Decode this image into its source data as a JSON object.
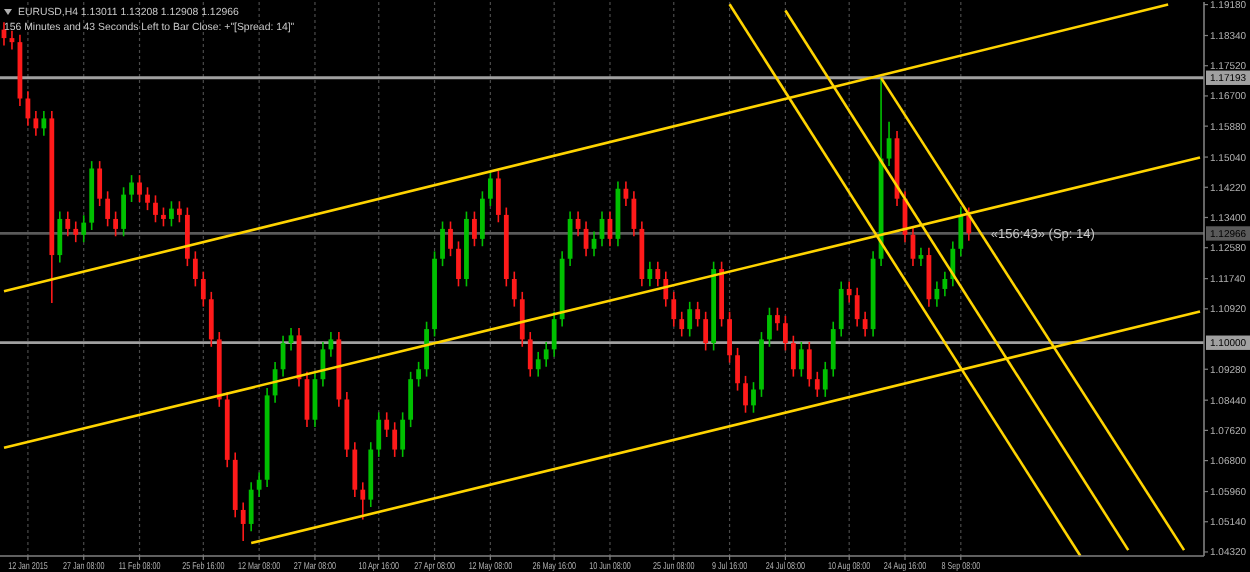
{
  "chart_data": {
    "type": "candlestick",
    "title": "EURUSD,H4  1.13011 1.13208 1.12908 1.12966",
    "subtitle": "156 Minutes and 43 Seconds Left to Bar Close: +\"[Spread: 14]\"",
    "categories": [
      null,
      null,
      null,
      "12 Jan 2015",
      null,
      null,
      null,
      null,
      null,
      null,
      "27 Jan 08:00",
      null,
      null,
      null,
      null,
      null,
      null,
      "11 Feb 08:00",
      null,
      null,
      null,
      null,
      null,
      null,
      null,
      "25 Feb 16:00",
      null,
      null,
      null,
      null,
      null,
      null,
      "12 Mar 08:00",
      null,
      null,
      null,
      null,
      null,
      null,
      "27 Mar 08:00",
      null,
      null,
      null,
      null,
      null,
      null,
      null,
      "10 Apr 16:00",
      null,
      null,
      null,
      null,
      null,
      null,
      "27 Apr 08:00",
      null,
      null,
      null,
      null,
      null,
      null,
      "12 May 08:00",
      null,
      null,
      null,
      null,
      null,
      null,
      null,
      "26 May 16:00",
      null,
      null,
      null,
      null,
      null,
      null,
      "10 Jun 08:00",
      null,
      null,
      null,
      null,
      null,
      null,
      null,
      "25 Jun 08:00",
      null,
      null,
      null,
      null,
      null,
      null,
      "9 Jul 16:00",
      null,
      null,
      null,
      null,
      null,
      null,
      "24 Jul 08:00",
      null,
      null,
      null,
      null,
      null,
      null,
      null,
      "10 Aug 08:00",
      null,
      null,
      null,
      null,
      null,
      null,
      "24 Aug 16:00",
      null,
      null,
      null,
      null,
      null,
      null,
      "8 Sep 08:00",
      null,
      null,
      null,
      null,
      null,
      null,
      null,
      null,
      null,
      null,
      null,
      null,
      null,
      null,
      null,
      null,
      null,
      null,
      null,
      null,
      null,
      null,
      null,
      null,
      null,
      null,
      null,
      null,
      null,
      null
    ],
    "ohlc": [
      [
        1.185,
        1.187,
        1.1807,
        1.1827
      ],
      [
        1.1827,
        1.1847,
        1.1796,
        1.1816
      ],
      [
        1.1816,
        1.1836,
        1.1643,
        1.1663
      ],
      [
        1.1663,
        1.1683,
        1.1589,
        1.1609
      ],
      [
        1.1609,
        1.1629,
        1.1562,
        1.1582
      ],
      [
        1.1582,
        1.1629,
        1.1562,
        1.1609
      ],
      [
        1.1609,
        1.1629,
        1.1108,
        1.1238
      ],
      [
        1.1238,
        1.1356,
        1.1218,
        1.1336
      ],
      [
        1.1336,
        1.1356,
        1.1289,
        1.1309
      ],
      [
        1.1309,
        1.1329,
        1.1273,
        1.1293
      ],
      [
        1.1293,
        1.1346,
        1.1273,
        1.1326
      ],
      [
        1.1326,
        1.1493,
        1.1306,
        1.1473
      ],
      [
        1.1473,
        1.1493,
        1.1371,
        1.1391
      ],
      [
        1.1391,
        1.1411,
        1.1316,
        1.1336
      ],
      [
        1.1336,
        1.1356,
        1.1289,
        1.1309
      ],
      [
        1.1309,
        1.1422,
        1.1289,
        1.1402
      ],
      [
        1.1402,
        1.1455,
        1.1382,
        1.1435
      ],
      [
        1.1435,
        1.1455,
        1.1382,
        1.1402
      ],
      [
        1.1402,
        1.1422,
        1.136,
        1.138
      ],
      [
        1.138,
        1.14,
        1.1327,
        1.1347
      ],
      [
        1.1347,
        1.1367,
        1.1316,
        1.1336
      ],
      [
        1.1336,
        1.1384,
        1.1316,
        1.1364
      ],
      [
        1.1364,
        1.1384,
        1.1327,
        1.1347
      ],
      [
        1.1347,
        1.1367,
        1.1208,
        1.1228
      ],
      [
        1.1228,
        1.1248,
        1.1153,
        1.1173
      ],
      [
        1.1173,
        1.1193,
        1.1098,
        1.1118
      ],
      [
        1.1118,
        1.1138,
        1.0989,
        1.1009
      ],
      [
        1.1009,
        1.1029,
        1.0826,
        1.0846
      ],
      [
        1.0846,
        1.0866,
        1.0662,
        1.0682
      ],
      [
        1.0682,
        1.0702,
        1.0526,
        1.0546
      ],
      [
        1.0546,
        1.0566,
        1.0462,
        1.0508
      ],
      [
        1.0508,
        1.0621,
        1.0488,
        1.0601
      ],
      [
        1.0601,
        1.0648,
        1.0581,
        1.0628
      ],
      [
        1.0628,
        1.0877,
        1.0608,
        1.0857
      ],
      [
        1.0857,
        1.0948,
        1.0837,
        1.0928
      ],
      [
        1.0928,
        1.1019,
        1.0908,
        1.0999
      ],
      [
        1.0999,
        1.104,
        1.0979,
        1.102
      ],
      [
        1.102,
        1.104,
        1.0881,
        1.0901
      ],
      [
        1.0901,
        1.0921,
        1.0771,
        1.0791
      ],
      [
        1.0791,
        1.0921,
        1.0771,
        1.0901
      ],
      [
        1.0901,
        1.1002,
        1.0881,
        1.0982
      ],
      [
        1.0982,
        1.1029,
        1.0962,
        1.1009
      ],
      [
        1.1009,
        1.1029,
        1.0826,
        1.0846
      ],
      [
        1.0846,
        1.0866,
        1.069,
        1.071
      ],
      [
        1.071,
        1.073,
        1.0581,
        1.0601
      ],
      [
        1.0601,
        1.0621,
        1.052,
        1.0574
      ],
      [
        1.0574,
        1.073,
        1.0554,
        1.071
      ],
      [
        1.071,
        1.0811,
        1.069,
        1.0791
      ],
      [
        1.0791,
        1.0811,
        1.0744,
        1.0764
      ],
      [
        1.0764,
        1.0784,
        1.069,
        1.071
      ],
      [
        1.071,
        1.0811,
        1.069,
        1.0791
      ],
      [
        1.0791,
        1.0921,
        1.0771,
        1.0901
      ],
      [
        1.0901,
        1.0948,
        1.0881,
        1.0928
      ],
      [
        1.0928,
        1.1057,
        1.0908,
        1.1037
      ],
      [
        1.1037,
        1.1248,
        1.1017,
        1.1228
      ],
      [
        1.1228,
        1.1329,
        1.1208,
        1.1309
      ],
      [
        1.1309,
        1.1329,
        1.1235,
        1.1255
      ],
      [
        1.1255,
        1.1275,
        1.1153,
        1.1173
      ],
      [
        1.1173,
        1.1356,
        1.1153,
        1.1336
      ],
      [
        1.1336,
        1.1356,
        1.1262,
        1.1282
      ],
      [
        1.1282,
        1.1411,
        1.1262,
        1.1391
      ],
      [
        1.1391,
        1.1466,
        1.1371,
        1.1446
      ],
      [
        1.1446,
        1.1466,
        1.1327,
        1.1347
      ],
      [
        1.1347,
        1.1367,
        1.1153,
        1.1173
      ],
      [
        1.1173,
        1.1193,
        1.1098,
        1.1118
      ],
      [
        1.1118,
        1.1138,
        1.0989,
        1.1009
      ],
      [
        1.1009,
        1.1029,
        1.0908,
        1.0928
      ],
      [
        1.0928,
        1.0975,
        1.0908,
        1.0955
      ],
      [
        1.0955,
        1.1002,
        1.0935,
        1.0982
      ],
      [
        1.0982,
        1.1084,
        1.0962,
        1.1064
      ],
      [
        1.1064,
        1.1248,
        1.1044,
        1.1228
      ],
      [
        1.1228,
        1.1356,
        1.1208,
        1.1336
      ],
      [
        1.1336,
        1.1356,
        1.1289,
        1.1309
      ],
      [
        1.1309,
        1.1329,
        1.1235,
        1.1255
      ],
      [
        1.1255,
        1.1302,
        1.1235,
        1.1282
      ],
      [
        1.1282,
        1.1356,
        1.1262,
        1.1336
      ],
      [
        1.1336,
        1.1356,
        1.1262,
        1.1282
      ],
      [
        1.1282,
        1.1438,
        1.1262,
        1.1418
      ],
      [
        1.1418,
        1.1438,
        1.1371,
        1.1391
      ],
      [
        1.1391,
        1.1411,
        1.1289,
        1.1309
      ],
      [
        1.1309,
        1.1329,
        1.1153,
        1.1173
      ],
      [
        1.1173,
        1.122,
        1.1153,
        1.12
      ],
      [
        1.12,
        1.122,
        1.1153,
        1.1173
      ],
      [
        1.1173,
        1.1193,
        1.1098,
        1.1118
      ],
      [
        1.1118,
        1.1138,
        1.1044,
        1.1064
      ],
      [
        1.1064,
        1.1084,
        1.1017,
        1.1037
      ],
      [
        1.1037,
        1.1111,
        1.1017,
        1.1091
      ],
      [
        1.1091,
        1.1111,
        1.1044,
        1.1064
      ],
      [
        1.1064,
        1.1084,
        1.0979,
        1.0999
      ],
      [
        1.0999,
        1.122,
        1.0979,
        1.12
      ],
      [
        1.12,
        1.122,
        1.1044,
        1.1064
      ],
      [
        1.1064,
        1.1084,
        1.0946,
        1.0966
      ],
      [
        1.0966,
        1.0986,
        1.087,
        1.089
      ],
      [
        1.089,
        1.091,
        1.081,
        1.083
      ],
      [
        1.083,
        1.0893,
        1.081,
        1.0873
      ],
      [
        1.0873,
        1.1029,
        1.0853,
        1.1009
      ],
      [
        1.1009,
        1.1095,
        1.0989,
        1.1075
      ],
      [
        1.1075,
        1.1095,
        1.1033,
        1.1053
      ],
      [
        1.1053,
        1.1073,
        1.0979,
        1.0999
      ],
      [
        1.0999,
        1.1019,
        1.0908,
        1.0928
      ],
      [
        1.0928,
        1.1002,
        1.0908,
        1.0982
      ],
      [
        1.0982,
        1.1002,
        1.0881,
        1.0901
      ],
      [
        1.0901,
        1.0921,
        1.0853,
        1.0873
      ],
      [
        1.0873,
        1.0948,
        1.0853,
        1.0928
      ],
      [
        1.0928,
        1.1057,
        1.0908,
        1.1037
      ],
      [
        1.1037,
        1.1166,
        1.1017,
        1.1146
      ],
      [
        1.1146,
        1.1166,
        1.1109,
        1.1129
      ],
      [
        1.1129,
        1.1149,
        1.1044,
        1.1064
      ],
      [
        1.1064,
        1.1084,
        1.1017,
        1.1037
      ],
      [
        1.1037,
        1.1248,
        1.1017,
        1.1228
      ],
      [
        1.1228,
        1.1719,
        1.1208,
        1.15
      ],
      [
        1.15,
        1.16,
        1.148,
        1.1555
      ],
      [
        1.1555,
        1.1575,
        1.1371,
        1.1391
      ],
      [
        1.1391,
        1.1411,
        1.1273,
        1.1293
      ],
      [
        1.1293,
        1.1313,
        1.1208,
        1.1228
      ],
      [
        1.1228,
        1.1258,
        1.1208,
        1.1238
      ],
      [
        1.1238,
        1.1258,
        1.1098,
        1.1118
      ],
      [
        1.1118,
        1.1166,
        1.1098,
        1.1146
      ],
      [
        1.1146,
        1.1193,
        1.1126,
        1.1173
      ],
      [
        1.1173,
        1.1275,
        1.1153,
        1.1255
      ],
      [
        1.1255,
        1.1367,
        1.1235,
        1.1347
      ],
      [
        1.1347,
        1.1367,
        1.1277,
        1.1297
      ],
      null,
      null,
      null,
      null,
      null,
      null,
      null,
      null,
      null,
      null,
      null,
      null,
      null,
      null,
      null,
      null,
      null,
      null,
      null,
      null,
      null,
      null,
      null,
      null,
      null,
      null,
      null,
      null,
      null
    ],
    "series": [
      {
        "type": "line",
        "color": "#ffd400",
        "values": [
          1.114,
          null,
          null,
          null,
          null,
          null,
          null,
          null,
          null,
          null,
          null,
          null,
          null,
          null,
          null,
          null,
          null,
          null,
          null,
          null,
          null,
          null,
          null,
          null,
          null,
          null,
          null,
          null,
          null,
          null,
          null,
          null,
          null,
          null,
          null,
          null,
          null,
          null,
          null,
          null,
          null,
          null,
          null,
          null,
          null,
          null,
          null,
          null,
          null,
          null,
          null,
          null,
          null,
          null,
          null,
          null,
          null,
          null,
          null,
          null,
          null,
          null,
          null,
          null,
          null,
          null,
          null,
          null,
          null,
          null,
          null,
          null,
          null,
          null,
          null,
          null,
          null,
          null,
          null,
          null,
          null,
          null,
          null,
          null,
          null,
          null,
          null,
          null,
          null,
          null,
          null,
          null,
          null,
          null,
          null,
          null,
          null,
          null,
          null,
          null,
          null,
          null,
          null,
          null,
          null,
          null,
          null,
          null,
          null,
          null,
          null,
          null,
          null,
          null,
          null,
          null,
          null,
          null,
          null,
          null,
          null,
          null,
          null,
          null,
          null,
          null,
          null,
          null,
          null,
          null,
          null,
          null,
          null,
          null,
          null,
          null,
          null,
          null,
          null,
          null,
          null,
          null,
          null,
          null,
          null,
          null,
          1.1918,
          null,
          null,
          null,
          null
        ]
      },
      {
        "type": "line",
        "color": "#ffd400",
        "values": [
          1.0715,
          null,
          null,
          null,
          null,
          null,
          null,
          null,
          null,
          null,
          null,
          null,
          null,
          null,
          null,
          null,
          null,
          null,
          null,
          null,
          null,
          null,
          null,
          null,
          null,
          null,
          null,
          null,
          null,
          null,
          null,
          null,
          null,
          null,
          null,
          null,
          null,
          null,
          null,
          null,
          null,
          null,
          null,
          null,
          null,
          null,
          null,
          null,
          null,
          null,
          null,
          null,
          null,
          null,
          null,
          null,
          null,
          null,
          null,
          null,
          null,
          null,
          null,
          null,
          null,
          null,
          null,
          null,
          null,
          null,
          null,
          null,
          null,
          null,
          null,
          null,
          null,
          null,
          null,
          null,
          null,
          null,
          null,
          null,
          null,
          null,
          null,
          null,
          null,
          null,
          null,
          null,
          null,
          null,
          null,
          null,
          null,
          null,
          null,
          null,
          null,
          null,
          null,
          null,
          null,
          null,
          null,
          null,
          null,
          null,
          null,
          null,
          null,
          null,
          null,
          null,
          null,
          null,
          null,
          null,
          null,
          null,
          null,
          null,
          null,
          null,
          null,
          null,
          null,
          null,
          null,
          null,
          null,
          null,
          null,
          null,
          null,
          null,
          null,
          null,
          null,
          null,
          null,
          null,
          null,
          null,
          null,
          null,
          null,
          null,
          1.1503
        ]
      },
      {
        "type": "line",
        "color": "#ffd400",
        "values": [
          null,
          null,
          null,
          null,
          null,
          null,
          null,
          null,
          null,
          null,
          null,
          null,
          null,
          null,
          null,
          null,
          null,
          null,
          null,
          null,
          null,
          null,
          null,
          null,
          null,
          null,
          null,
          null,
          null,
          null,
          null,
          1.0456,
          null,
          null,
          null,
          null,
          null,
          null,
          null,
          null,
          null,
          null,
          null,
          null,
          null,
          null,
          null,
          null,
          null,
          null,
          null,
          null,
          null,
          null,
          null,
          null,
          null,
          null,
          null,
          null,
          null,
          null,
          null,
          null,
          null,
          null,
          null,
          null,
          null,
          null,
          null,
          null,
          null,
          null,
          null,
          null,
          null,
          null,
          null,
          null,
          null,
          null,
          null,
          null,
          null,
          null,
          null,
          null,
          null,
          null,
          null,
          null,
          null,
          null,
          null,
          null,
          null,
          null,
          null,
          null,
          null,
          null,
          null,
          null,
          null,
          null,
          null,
          null,
          null,
          null,
          null,
          null,
          null,
          null,
          null,
          null,
          null,
          null,
          null,
          null,
          null,
          null,
          null,
          null,
          null,
          null,
          null,
          null,
          null,
          null,
          null,
          null,
          null,
          null,
          null,
          null,
          null,
          null,
          null,
          null,
          null,
          null,
          null,
          null,
          null,
          null,
          null,
          null,
          null,
          null,
          1.1085
        ]
      },
      {
        "type": "line",
        "color": "#ffd400",
        "values": [
          null,
          null,
          null,
          null,
          null,
          null,
          null,
          null,
          null,
          null,
          null,
          null,
          null,
          null,
          null,
          null,
          null,
          null,
          null,
          null,
          null,
          null,
          null,
          null,
          null,
          null,
          null,
          null,
          null,
          null,
          null,
          null,
          null,
          null,
          null,
          null,
          null,
          null,
          null,
          null,
          null,
          null,
          null,
          null,
          null,
          null,
          null,
          null,
          null,
          null,
          null,
          null,
          null,
          null,
          null,
          null,
          null,
          null,
          null,
          null,
          null,
          null,
          null,
          null,
          null,
          null,
          null,
          null,
          null,
          null,
          null,
          null,
          null,
          null,
          null,
          null,
          null,
          null,
          null,
          null,
          null,
          null,
          null,
          null,
          null,
          null,
          null,
          null,
          null,
          null,
          null,
          1.1919,
          null,
          null,
          null,
          null,
          null,
          null,
          null,
          null,
          null,
          null,
          null,
          null,
          null,
          null,
          null,
          null,
          null,
          null,
          null,
          null,
          null,
          null,
          null,
          null,
          null,
          null,
          null,
          null,
          null,
          null,
          null,
          null,
          null,
          null,
          null,
          null,
          null,
          null,
          null,
          null,
          null,
          null,
          null,
          1.0421,
          null,
          null,
          null,
          null,
          null,
          null,
          null,
          null,
          null,
          null,
          null,
          null,
          null,
          null,
          null
        ]
      },
      {
        "type": "line",
        "color": "#ffd400",
        "values": [
          null,
          null,
          null,
          null,
          null,
          null,
          null,
          null,
          null,
          null,
          null,
          null,
          null,
          null,
          null,
          null,
          null,
          null,
          null,
          null,
          null,
          null,
          null,
          null,
          null,
          null,
          null,
          null,
          null,
          null,
          null,
          null,
          null,
          null,
          null,
          null,
          null,
          null,
          null,
          null,
          null,
          null,
          null,
          null,
          null,
          null,
          null,
          null,
          null,
          null,
          null,
          null,
          null,
          null,
          null,
          null,
          null,
          null,
          null,
          null,
          null,
          null,
          null,
          null,
          null,
          null,
          null,
          null,
          null,
          null,
          null,
          null,
          null,
          null,
          null,
          null,
          null,
          null,
          null,
          null,
          null,
          null,
          null,
          null,
          null,
          null,
          null,
          null,
          null,
          null,
          null,
          null,
          null,
          null,
          null,
          null,
          null,
          null,
          1.1902,
          null,
          null,
          null,
          null,
          null,
          null,
          null,
          null,
          null,
          null,
          null,
          null,
          null,
          null,
          null,
          null,
          null,
          null,
          null,
          null,
          null,
          null,
          null,
          null,
          null,
          null,
          null,
          null,
          null,
          null,
          null,
          null,
          null,
          null,
          null,
          null,
          null,
          null,
          null,
          null,
          null,
          null,
          1.0437,
          null,
          null,
          null,
          null,
          null,
          null,
          null,
          null,
          null
        ]
      },
      {
        "type": "line",
        "color": "#ffd400",
        "values": [
          null,
          null,
          null,
          null,
          null,
          null,
          null,
          null,
          null,
          null,
          null,
          null,
          null,
          null,
          null,
          null,
          null,
          null,
          null,
          null,
          null,
          null,
          null,
          null,
          null,
          null,
          null,
          null,
          null,
          null,
          null,
          null,
          null,
          null,
          null,
          null,
          null,
          null,
          null,
          null,
          null,
          null,
          null,
          null,
          null,
          null,
          null,
          null,
          null,
          null,
          null,
          null,
          null,
          null,
          null,
          null,
          null,
          null,
          null,
          null,
          null,
          null,
          null,
          null,
          null,
          null,
          null,
          null,
          null,
          null,
          null,
          null,
          null,
          null,
          null,
          null,
          null,
          null,
          null,
          null,
          null,
          null,
          null,
          null,
          null,
          null,
          null,
          null,
          null,
          null,
          null,
          null,
          null,
          null,
          null,
          null,
          null,
          null,
          null,
          null,
          null,
          null,
          null,
          null,
          null,
          null,
          null,
          null,
          null,
          null,
          1.1719,
          null,
          null,
          null,
          null,
          null,
          null,
          null,
          null,
          null,
          null,
          null,
          null,
          null,
          null,
          null,
          null,
          null,
          null,
          null,
          null,
          null,
          null,
          null,
          null,
          null,
          null,
          null,
          null,
          null,
          null,
          null,
          null,
          null,
          null,
          null,
          null,
          null,
          1.0437,
          null,
          null
        ]
      }
    ],
    "ylim": [
      1.0421,
      1.1925
    ],
    "yticks": [
      {
        "value": 1.1918,
        "label": "1.19180"
      },
      {
        "value": 1.1834,
        "label": "1.18340"
      },
      {
        "value": 1.1752,
        "label": "1.17520"
      },
      {
        "value": 1.167,
        "label": "1.16700"
      },
      {
        "value": 1.1588,
        "label": "1.15880"
      },
      {
        "value": 1.1504,
        "label": "1.15040"
      },
      {
        "value": 1.1422,
        "label": "1.14220"
      },
      {
        "value": 1.134,
        "label": "1.13400"
      },
      {
        "value": 1.1258,
        "label": "1.12580"
      },
      {
        "value": 1.1174,
        "label": "1.11740"
      },
      {
        "value": 1.1092,
        "label": "1.10920"
      },
      {
        "value": 1.0928,
        "label": "1.09280"
      },
      {
        "value": 1.0844,
        "label": "1.08440"
      },
      {
        "value": 1.0762,
        "label": "1.07620"
      },
      {
        "value": 1.068,
        "label": "1.06800"
      },
      {
        "value": 1.0596,
        "label": "1.05960"
      },
      {
        "value": 1.0514,
        "label": "1.05140"
      },
      {
        "value": 1.0432,
        "label": "1.04320"
      }
    ],
    "grid": "x",
    "ref_lines": [
      {
        "axis": "y",
        "value": 1.17193,
        "label": "1.17193",
        "color": "#a0a0a0"
      },
      {
        "axis": "y",
        "value": 1.12966,
        "label": "1.12966",
        "color": "#5a5a5a"
      },
      {
        "axis": "y",
        "value": 1.1,
        "label": "1.10000",
        "color": "#a0a0a0"
      }
    ],
    "annotations": [
      {
        "text": "«156:43» (Sp: 14)",
        "y": 1.12966
      }
    ]
  }
}
